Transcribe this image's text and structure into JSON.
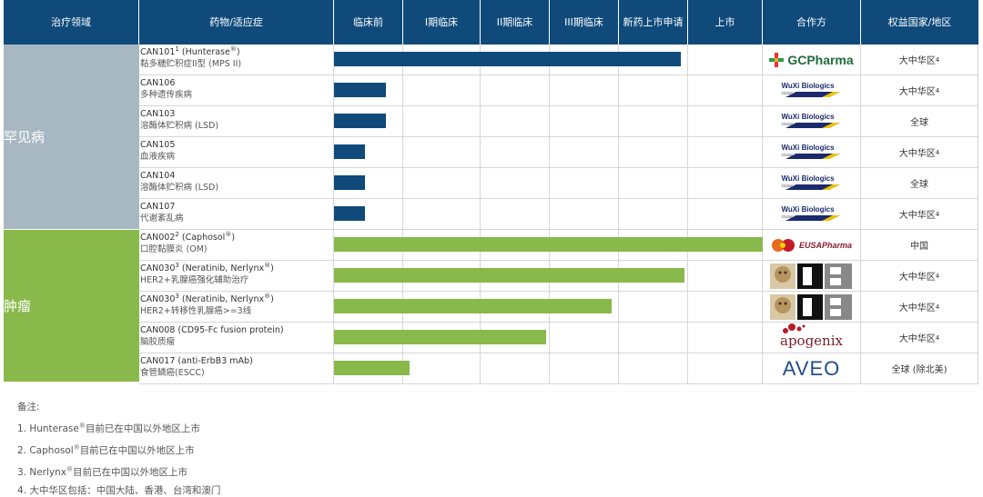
{
  "colors": {
    "header": "#0f4a7b",
    "rare_area": "#a8b8c3",
    "onco_area": "#88b94a",
    "rare_bar": "#0f4a7b",
    "onco_bar": "#88b94a"
  },
  "header": {
    "area": "治疗领域",
    "drug": "药物/适应症",
    "phases": [
      "临床前",
      "I期临床",
      "II期临床",
      "III期临床",
      "新药上市申请",
      "上市"
    ],
    "partner": "合作方",
    "region": "权益国家/地区"
  },
  "areas": {
    "rare": "罕见病",
    "oncology": "肿瘤"
  },
  "chart_data": {
    "type": "bar",
    "orientation": "horizontal",
    "x_categories": [
      "临床前",
      "I期临床",
      "II期临床",
      "III期临床",
      "新药上市申请",
      "上市"
    ],
    "rows": [
      {
        "area": "罕见病",
        "name": "CAN101",
        "sup": "1",
        "brand": "Hunterase",
        "indication": "黏多糖贮积症II型 (MPS II)",
        "progress_phases": 4.9,
        "partner": "GC Pharma",
        "partner_logo": "gcpharma-logo",
        "region": "大中华区",
        "region_sup": "4"
      },
      {
        "area": "罕见病",
        "name": "CAN106",
        "sup": "",
        "brand": "",
        "indication": "多种遗传疾病",
        "progress_phases": 0.75,
        "partner": "WuXi Biologics",
        "partner_logo": "wuxi-biologics-logo",
        "region": "大中华区",
        "region_sup": "4"
      },
      {
        "area": "罕见病",
        "name": "CAN103",
        "sup": "",
        "brand": "",
        "indication": "溶酶体贮积病 (LSD)",
        "progress_phases": 0.75,
        "partner": "WuXi Biologics",
        "partner_logo": "wuxi-biologics-logo",
        "region": "全球",
        "region_sup": ""
      },
      {
        "area": "罕见病",
        "name": "CAN105",
        "sup": "",
        "brand": "",
        "indication": "血液疾病",
        "progress_phases": 0.45,
        "partner": "WuXi Biologics",
        "partner_logo": "wuxi-biologics-logo",
        "region": "大中华区",
        "region_sup": "4"
      },
      {
        "area": "罕见病",
        "name": "CAN104",
        "sup": "",
        "brand": "",
        "indication": "溶酶体贮积病 (LSD)",
        "progress_phases": 0.45,
        "partner": "WuXi Biologics",
        "partner_logo": "wuxi-biologics-logo",
        "region": "全球",
        "region_sup": ""
      },
      {
        "area": "罕见病",
        "name": "CAN107",
        "sup": "",
        "brand": "",
        "indication": "代谢紊乱病",
        "progress_phases": 0.45,
        "partner": "WuXi Biologics",
        "partner_logo": "wuxi-biologics-logo",
        "region": "大中华区",
        "region_sup": "4"
      },
      {
        "area": "肿瘤",
        "name": "CAN002",
        "sup": "2",
        "brand": "Caphosol",
        "indication": "口腔黏膜炎 (OM)",
        "progress_phases": 6.0,
        "partner": "EUSA Pharma",
        "partner_logo": "eusa-pharma-logo",
        "region": "中国",
        "region_sup": ""
      },
      {
        "area": "肿瘤",
        "name": "CAN030",
        "sup": "3",
        "brand": "Neratinib, Nerlynx",
        "indication": "HER2+乳腺癌强化辅助治疗",
        "progress_phases": 4.95,
        "partner": "Puma Biotechnology",
        "partner_logo": "puma-biotechnology-logo",
        "region": "大中华区",
        "region_sup": "4"
      },
      {
        "area": "肿瘤",
        "name": "CAN030",
        "sup": "3",
        "brand": "Neratinib, Nerlynx",
        "indication": "HER2+转移性乳腺癌>=3线",
        "progress_phases": 3.9,
        "partner": "Puma Biotechnology",
        "partner_logo": "puma-biotechnology-logo",
        "region": "大中华区",
        "region_sup": "4"
      },
      {
        "area": "肿瘤",
        "name": "CAN008",
        "sup": "",
        "brand": "CD95-Fc fusion protein",
        "indication": "脑胶质瘤",
        "progress_phases": 2.95,
        "partner": "apogenix",
        "partner_logo": "apogenix-logo",
        "region": "大中华区",
        "region_sup": "4"
      },
      {
        "area": "肿瘤",
        "name": "CAN017",
        "sup": "",
        "brand": "anti-ErbB3 mAb",
        "indication": "食管鳞癌(ESCC)",
        "progress_phases": 1.08,
        "partner": "AVEO",
        "partner_logo": "aveo-logo",
        "region": "全球 (除北美)",
        "region_sup": ""
      }
    ]
  },
  "logos": {
    "gc_text": "GCPharma",
    "wuxi_text": "WuXi Biologics",
    "wuxi_sub": "Global Solution Provider",
    "eusa_text": "EUSAPharma",
    "apogenix_text": "apogenix",
    "aveo_text": "AVEO"
  },
  "notes": {
    "title": "备注:",
    "items": [
      {
        "pre": "1. Hunterase",
        "sup": "®",
        "post": "目前已在中国以外地区上市"
      },
      {
        "pre": "2. Caphosol",
        "sup": "®",
        "post": "目前已在中国以外地区上市"
      },
      {
        "pre": "3. Nerlynx",
        "sup": "®",
        "post": "目前已在中国以外地区上市"
      },
      {
        "pre": "4. 大中华区包括：中国大陆、香港、台湾和澳门",
        "sup": "",
        "post": ""
      }
    ]
  }
}
